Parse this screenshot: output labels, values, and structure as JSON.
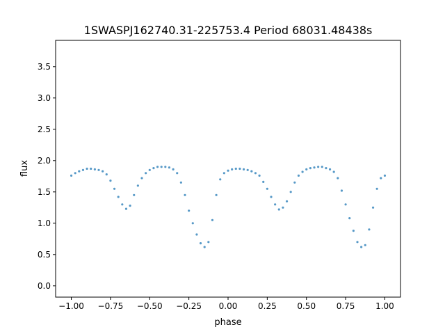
{
  "chart_data": {
    "type": "scatter",
    "title": "1SWASPJ162740.31-225753.4 Period 68031.48438s",
    "xlabel": "phase",
    "ylabel": "flux",
    "xlim": [
      -1.1,
      1.1
    ],
    "ylim": [
      -0.18,
      3.92
    ],
    "x_ticks": [
      -1.0,
      -0.75,
      -0.5,
      -0.25,
      0.0,
      0.25,
      0.5,
      0.75,
      1.0
    ],
    "x_tick_labels": [
      "−1.00",
      "−0.75",
      "−0.50",
      "−0.25",
      "0.00",
      "0.25",
      "0.50",
      "0.75",
      "1.00"
    ],
    "y_ticks": [
      0.0,
      0.5,
      1.0,
      1.5,
      2.0,
      2.5,
      3.0,
      3.5
    ],
    "y_tick_labels": [
      "0.0",
      "0.5",
      "1.0",
      "1.5",
      "2.0",
      "2.5",
      "3.0",
      "3.5"
    ],
    "grid": false,
    "legend": "none",
    "series_color": "#1f77b4",
    "series": [
      {
        "x": [
          -1.0,
          -0.975,
          -0.95,
          -0.925,
          -0.9,
          -0.875,
          -0.85,
          -0.825,
          -0.8,
          -0.775,
          -0.75,
          -0.725,
          -0.7,
          -0.675,
          -0.65,
          -0.625,
          -0.6,
          -0.575,
          -0.55,
          -0.525,
          -0.5,
          -0.475,
          -0.45,
          -0.425,
          -0.4,
          -0.375,
          -0.35,
          -0.325,
          -0.3,
          -0.275,
          -0.25,
          -0.225,
          -0.2,
          -0.175,
          -0.15,
          -0.125,
          -0.1,
          -0.075,
          -0.05,
          -0.025,
          0.0,
          0.025,
          0.05,
          0.075,
          0.1,
          0.125,
          0.15,
          0.175,
          0.2,
          0.225,
          0.25,
          0.275,
          0.3,
          0.325,
          0.35,
          0.375,
          0.4,
          0.425,
          0.45,
          0.475,
          0.5,
          0.525,
          0.55,
          0.575,
          0.6,
          0.625,
          0.65,
          0.675,
          0.7,
          0.725,
          0.75,
          0.775,
          0.8,
          0.825,
          0.85,
          0.875,
          0.9,
          0.925,
          0.95,
          0.975,
          1.0
        ],
        "y": [
          1.76,
          1.8,
          1.83,
          1.85,
          1.87,
          1.87,
          1.86,
          1.85,
          1.83,
          1.78,
          1.68,
          1.55,
          1.42,
          1.3,
          1.23,
          1.28,
          1.45,
          1.6,
          1.72,
          1.8,
          1.85,
          1.88,
          1.9,
          1.9,
          1.9,
          1.89,
          1.86,
          1.8,
          1.65,
          1.45,
          1.2,
          1.0,
          0.82,
          0.68,
          0.62,
          0.7,
          1.05,
          1.45,
          1.7,
          1.8,
          1.84,
          1.86,
          1.87,
          1.87,
          1.86,
          1.85,
          1.83,
          1.8,
          1.76,
          1.66,
          1.55,
          1.42,
          1.3,
          1.22,
          1.25,
          1.35,
          1.5,
          1.65,
          1.76,
          1.82,
          1.86,
          1.88,
          1.89,
          1.9,
          1.9,
          1.88,
          1.86,
          1.82,
          1.72,
          1.52,
          1.3,
          1.08,
          0.88,
          0.7,
          0.62,
          0.65,
          0.9,
          1.25,
          1.55,
          1.72,
          1.76
        ]
      }
    ]
  }
}
